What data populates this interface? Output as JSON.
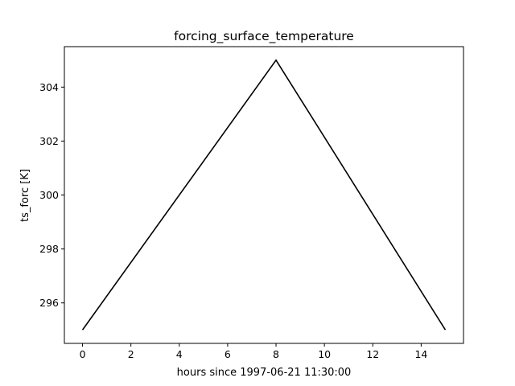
{
  "chart_data": {
    "type": "line",
    "title": "forcing_surface_temperature",
    "xlabel": "hours since 1997-06-21 11:30:00",
    "ylabel": "ts_forc [K]",
    "xlim": [
      -0.75,
      15.75
    ],
    "ylim": [
      294.5,
      305.5
    ],
    "x_ticks": [
      0,
      2,
      4,
      6,
      8,
      10,
      12,
      14
    ],
    "x_tick_labels": [
      "0",
      "2",
      "4",
      "6",
      "8",
      "10",
      "12",
      "14"
    ],
    "y_ticks": [
      296,
      298,
      300,
      302,
      304
    ],
    "y_tick_labels": [
      "296",
      "298",
      "300",
      "302",
      "304"
    ],
    "grid": false,
    "series": [
      {
        "name": "ts_forc",
        "color": "#000000",
        "x": [
          0,
          8,
          15
        ],
        "values": [
          295,
          305,
          295
        ]
      }
    ]
  }
}
